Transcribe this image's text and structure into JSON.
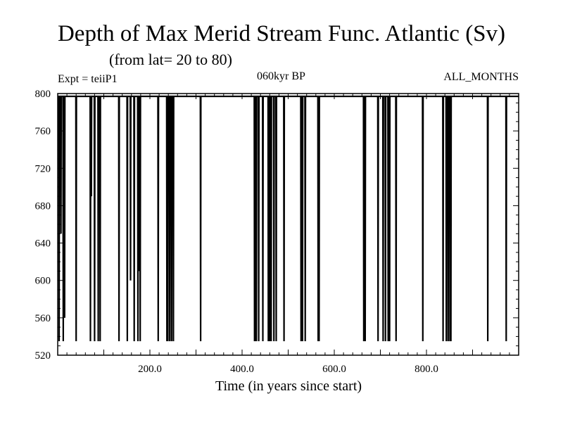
{
  "chart_data": {
    "type": "line",
    "title": "Depth of Max Merid Stream Func. Atlantic (Sv)",
    "subtitle": "(from lat= 20 to 80)",
    "left_label": "Expt = teiiP1",
    "center_label": "060kyr BP",
    "right_label": "ALL_MONTHS",
    "xlabel": "Time (in years since start)",
    "ylabel": "",
    "xlim": [
      0,
      1000
    ],
    "ylim": [
      520,
      800
    ],
    "x_ticks": [
      200,
      400,
      600,
      800
    ],
    "x_tick_labels": [
      "200.0",
      "400.0",
      "600.0",
      "800.0"
    ],
    "y_ticks": [
      520,
      560,
      600,
      640,
      680,
      720,
      760,
      800
    ],
    "y_tick_labels": [
      "520",
      "560",
      "600",
      "640",
      "680",
      "720",
      "760",
      "800"
    ],
    "baseline": 797,
    "series": [
      {
        "dips": [
          [
            3,
            535
          ],
          [
            7,
            650
          ],
          [
            12,
            535
          ],
          [
            15,
            560
          ],
          [
            40,
            535
          ],
          [
            71,
            535
          ],
          [
            73,
            690
          ],
          [
            80,
            535
          ],
          [
            88,
            535
          ],
          [
            92,
            535
          ],
          [
            133,
            535
          ],
          [
            151,
            535
          ],
          [
            158,
            600
          ],
          [
            166,
            535
          ],
          [
            174,
            535
          ],
          [
            176,
            610
          ],
          [
            179,
            535
          ],
          [
            218,
            535
          ],
          [
            237,
            535
          ],
          [
            239,
            535
          ],
          [
            243,
            535
          ],
          [
            247,
            535
          ],
          [
            251,
            535
          ],
          [
            310,
            535
          ],
          [
            427,
            535
          ],
          [
            429,
            535
          ],
          [
            431,
            535
          ],
          [
            436,
            535
          ],
          [
            445,
            535
          ],
          [
            457,
            535
          ],
          [
            460,
            535
          ],
          [
            463,
            535
          ],
          [
            469,
            535
          ],
          [
            474,
            535
          ],
          [
            491,
            535
          ],
          [
            528,
            535
          ],
          [
            531,
            535
          ],
          [
            537,
            535
          ],
          [
            565,
            535
          ],
          [
            567,
            535
          ],
          [
            664,
            535
          ],
          [
            667,
            535
          ],
          [
            695,
            535
          ],
          [
            706,
            535
          ],
          [
            711,
            535
          ],
          [
            717,
            535
          ],
          [
            720,
            535
          ],
          [
            734,
            535
          ],
          [
            792,
            535
          ],
          [
            836,
            535
          ],
          [
            843,
            535
          ],
          [
            847,
            535
          ],
          [
            851,
            535
          ],
          [
            853,
            535
          ],
          [
            933,
            535
          ],
          [
            973,
            535
          ]
        ]
      }
    ]
  }
}
